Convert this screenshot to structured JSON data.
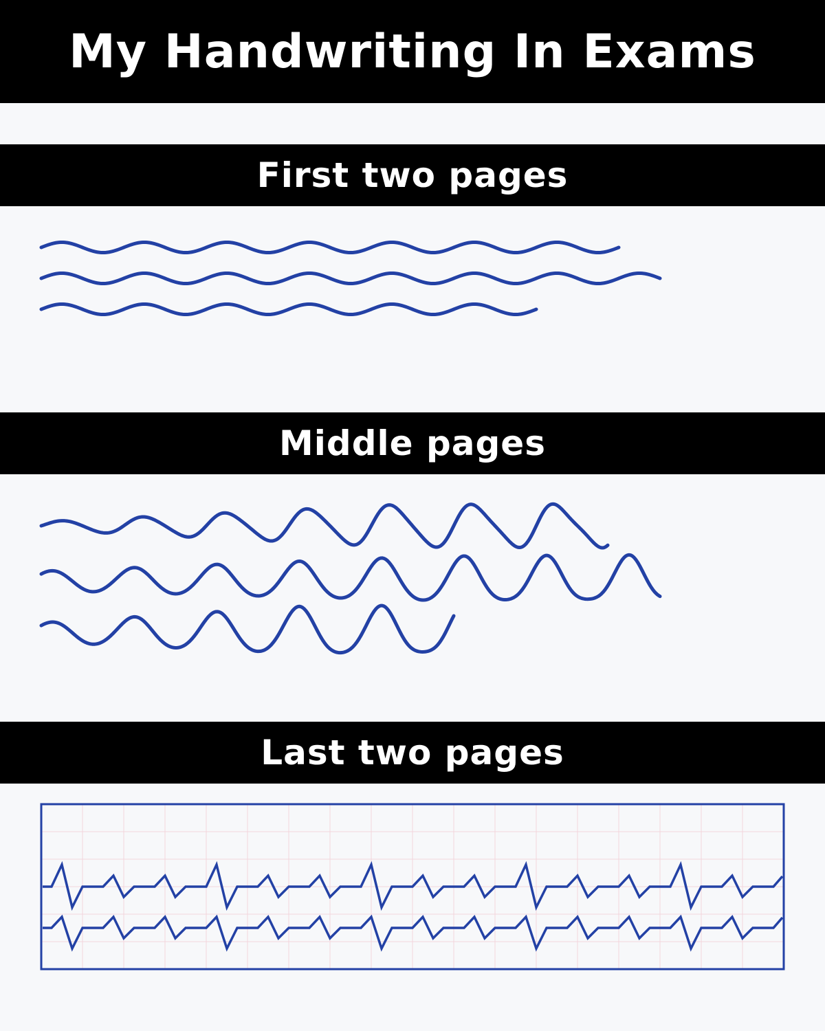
{
  "title": "My Handwriting In Exams",
  "sections": [
    {
      "label": "First two pages"
    },
    {
      "label": "Middle pages"
    },
    {
      "label": "Last two pages"
    }
  ],
  "colors": {
    "ink": "#2341a5",
    "bar": "#000000",
    "background": "#f7f8fa",
    "grid": "#f3d6dc"
  }
}
